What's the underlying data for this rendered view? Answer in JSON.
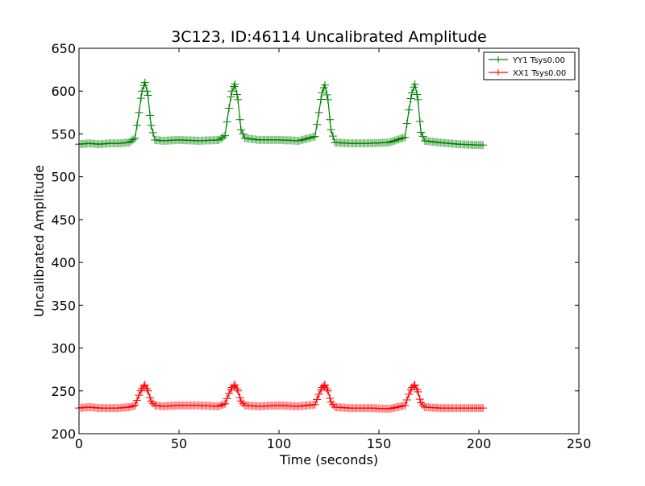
{
  "chart_data": {
    "type": "line",
    "title": "3C123, ID:46114 Uncalibrated Amplitude",
    "xlabel": "Time (seconds)",
    "ylabel": "Uncalibrated Amplitude",
    "xlim": [
      0,
      250
    ],
    "ylim": [
      200,
      650
    ],
    "xticks": [
      0,
      50,
      100,
      150,
      200,
      250
    ],
    "yticks": [
      200,
      250,
      300,
      350,
      400,
      450,
      500,
      550,
      600,
      650
    ],
    "grid": false,
    "legend_position": "top-right",
    "marker": "+",
    "series": [
      {
        "name": "YY1 Tsys0.00",
        "color": "#008000",
        "x": [
          0,
          5,
          10,
          15,
          20,
          25,
          28,
          30,
          31.5,
          33,
          34.5,
          36,
          38,
          42,
          50,
          60,
          70,
          73,
          75,
          76.5,
          78,
          79.5,
          81,
          83,
          90,
          100,
          110,
          118,
          120,
          121.5,
          123,
          124.5,
          126,
          128,
          135,
          145,
          155,
          163,
          165,
          166.5,
          168,
          169.5,
          171,
          173,
          180,
          190,
          200,
          202
        ],
        "y": [
          538,
          539,
          538,
          539,
          539,
          540,
          545,
          575,
          600,
          610,
          595,
          560,
          543,
          542,
          543,
          542,
          543,
          548,
          580,
          600,
          608,
          590,
          555,
          545,
          543,
          543,
          542,
          547,
          575,
          598,
          607,
          590,
          555,
          540,
          539,
          539,
          540,
          546,
          578,
          598,
          608,
          590,
          552,
          542,
          540,
          538,
          537,
          537
        ]
      },
      {
        "name": "XX1 Tsys0.00",
        "color": "#ff0000",
        "x": [
          0,
          5,
          10,
          15,
          20,
          25,
          28,
          30,
          31.5,
          33,
          34.5,
          36,
          38,
          42,
          50,
          60,
          70,
          73,
          75,
          76.5,
          78,
          79.5,
          81,
          83,
          90,
          100,
          110,
          118,
          120,
          121.5,
          123,
          124.5,
          126,
          128,
          135,
          145,
          155,
          163,
          165,
          166.5,
          168,
          169.5,
          171,
          173,
          180,
          190,
          200,
          202
        ],
        "y": [
          230,
          231,
          230,
          230,
          230,
          231,
          233,
          245,
          253,
          257,
          250,
          238,
          233,
          232,
          233,
          233,
          232,
          235,
          247,
          254,
          257,
          250,
          238,
          233,
          232,
          233,
          232,
          234,
          246,
          254,
          257,
          250,
          237,
          231,
          230,
          230,
          229,
          233,
          246,
          254,
          257,
          249,
          236,
          231,
          230,
          230,
          230,
          230
        ]
      }
    ]
  }
}
